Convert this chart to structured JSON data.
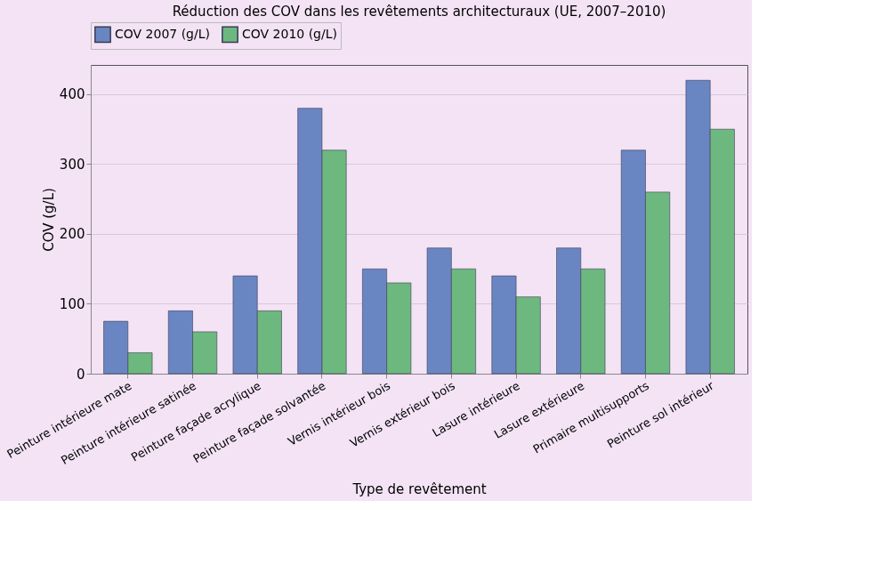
{
  "chart_data": {
    "type": "bar",
    "title": "Réduction des COV dans les revêtements architecturaux (UE, 2007–2010)",
    "xlabel": "Type de revêtement",
    "ylabel": "COV (g/L)",
    "categories": [
      "Peinture intérieure mate",
      "Peinture intérieure satinée",
      "Peinture façade acrylique",
      "Peinture façade solvantée",
      "Vernis intérieur bois",
      "Vernis extérieur bois",
      "Lasure intérieure",
      "Lasure extérieure",
      "Primaire multisupports",
      "Peinture sol intérieur"
    ],
    "series": [
      {
        "name": "COV 2007 (g/L)",
        "color": "#6a86c2",
        "values": [
          75,
          90,
          140,
          380,
          150,
          180,
          140,
          180,
          320,
          420
        ]
      },
      {
        "name": "COV 2010 (g/L)",
        "color": "#6db87e",
        "values": [
          30,
          60,
          90,
          320,
          130,
          150,
          110,
          150,
          260,
          350
        ]
      }
    ],
    "ylim": [
      0,
      442
    ],
    "yticks": [
      0,
      100,
      200,
      300,
      400
    ],
    "grid": "y",
    "legend": "top"
  }
}
